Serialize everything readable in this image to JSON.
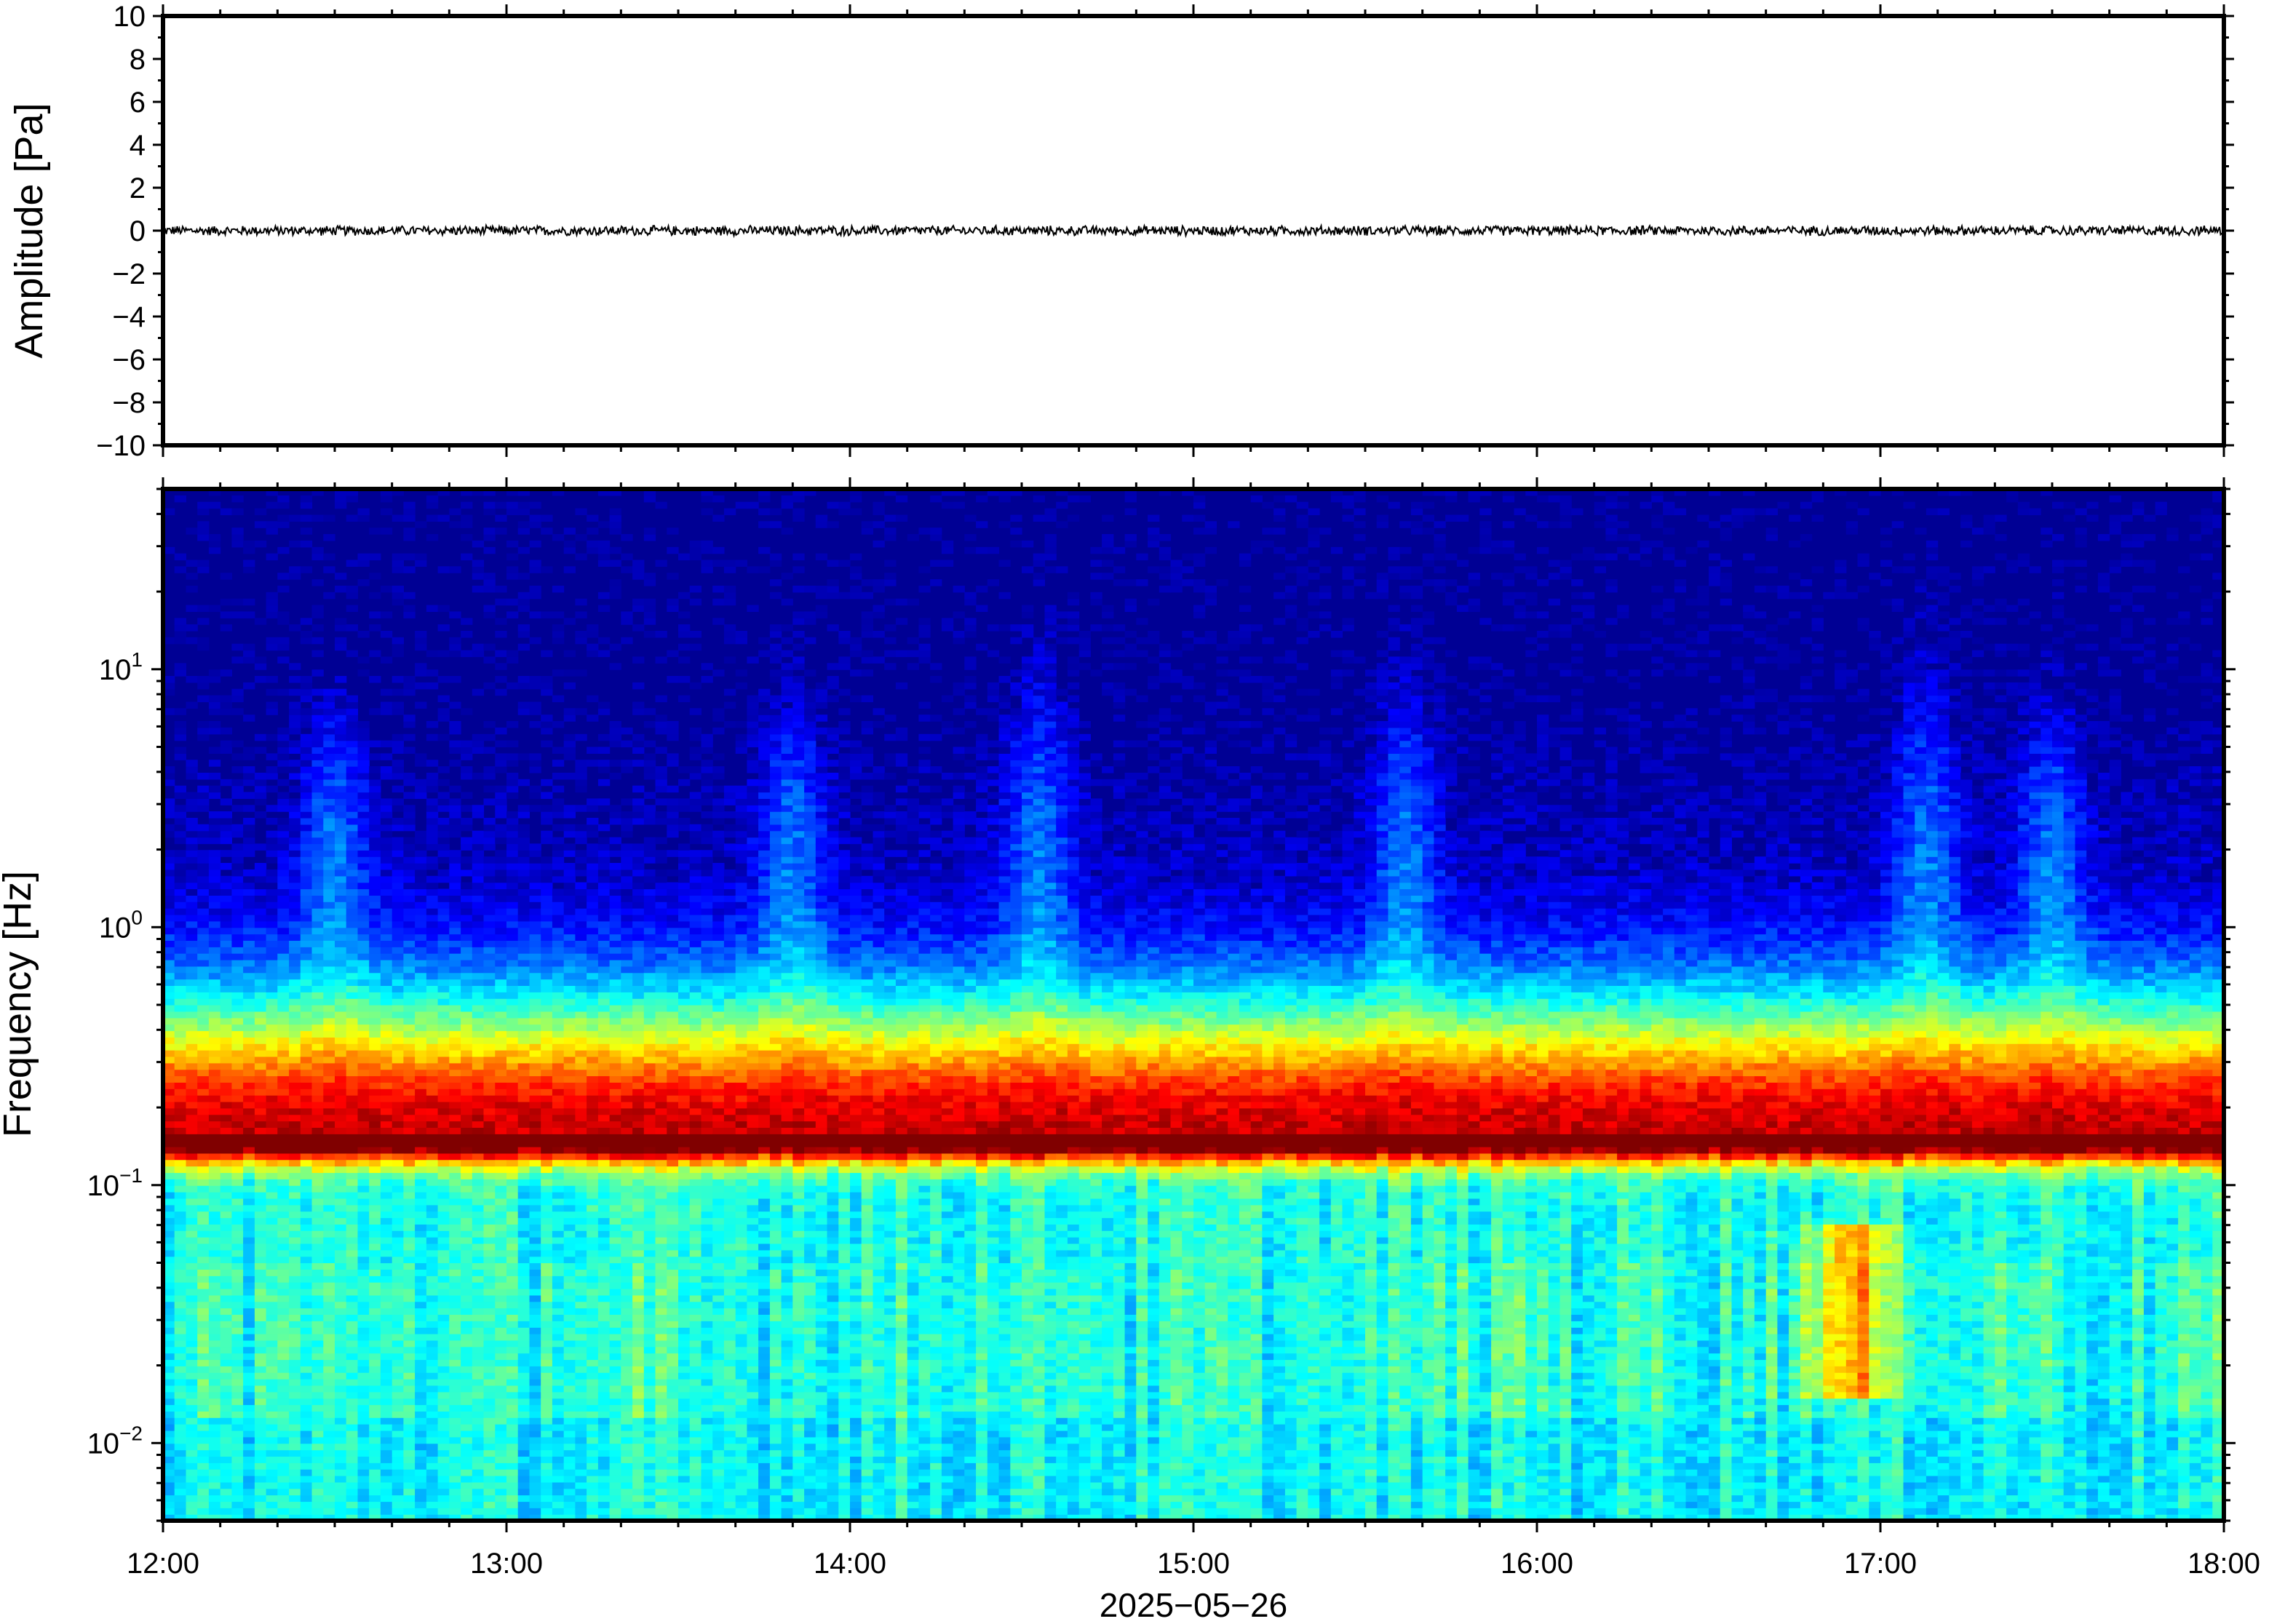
{
  "chart_data": [
    {
      "type": "line",
      "panel": "waveform",
      "ylabel": "Amplitude [Pa]",
      "ylim": [
        -10,
        10
      ],
      "yticks": [
        10,
        8,
        6,
        4,
        2,
        0,
        -2,
        -4,
        -6,
        -8,
        -10
      ],
      "ytick_labels": [
        "10",
        "8",
        "6",
        "4",
        "2",
        "0",
        "−2",
        "−4",
        "−6",
        "−8",
        "−10"
      ],
      "xlim": [
        "12:00",
        "18:00"
      ],
      "series": [
        {
          "values_description_free": true,
          "x": [
            "12:00",
            "18:00"
          ],
          "y": [
            0,
            0
          ],
          "noise_amplitude": 0.25
        }
      ],
      "line_color": "#000000"
    },
    {
      "type": "heatmap",
      "panel": "spectrogram",
      "ylabel": "Frequency [Hz]",
      "yscale": "log",
      "ylim": [
        0.005,
        50
      ],
      "yticks": [
        {
          "value": 10,
          "base": "10",
          "exp": "1"
        },
        {
          "value": 1,
          "base": "10",
          "exp": "0"
        },
        {
          "value": 0.1,
          "base": "10",
          "exp": "−1"
        },
        {
          "value": 0.01,
          "base": "10",
          "exp": "−2"
        }
      ],
      "xlim": [
        "12:00",
        "18:00"
      ],
      "xticks": [
        "12:00",
        "13:00",
        "14:00",
        "15:00",
        "16:00",
        "17:00",
        "18:00"
      ],
      "xlabel": "2025−05−26",
      "colormap": "jet",
      "dominant_band_hz": 0.16,
      "bursts": [
        {
          "time": "12:30",
          "top_hz": 8
        },
        {
          "time": "13:50",
          "top_hz": 8
        },
        {
          "time": "14:33",
          "top_hz": 14
        },
        {
          "time": "15:37",
          "top_hz": 10
        },
        {
          "time": "17:08",
          "top_hz": 14
        },
        {
          "time": "17:30",
          "top_hz": 8
        }
      ],
      "low_freq_hotspot": {
        "time": "16:55",
        "range_hz": [
          0.015,
          0.07
        ]
      }
    }
  ]
}
